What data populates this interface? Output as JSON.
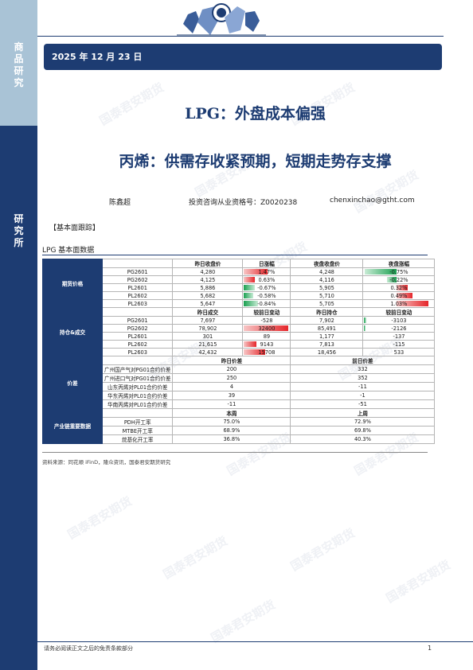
{
  "sidebar": {
    "top_label": "商\n品\n研\n究",
    "bottom_label": "研\n究\n所"
  },
  "date": "2025 年 12 月 23 日",
  "title_main": "LPG：外盘成本偏强",
  "title_sub": "丙烯：供需存收紧预期，短期走势存支撑",
  "author": {
    "name": "陈鑫超",
    "qualification_label": "投资咨询从业资格号：",
    "qualification_no": "Z0020238",
    "email": "chenxinchao@gtht.com"
  },
  "section_tag": "【基本面跟踪】",
  "table_title": "LPG 基本面数据",
  "watermark_text": "国泰君安期货",
  "table": {
    "futures": {
      "category": "期货价格",
      "headers": [
        "昨日收盘价",
        "日涨幅",
        "夜盘收盘价",
        "夜盘涨幅"
      ],
      "rows": [
        {
          "label": "PG2601",
          "close": "4,280",
          "chg": "1.47%",
          "night": "4,248",
          "night_chg": "-0.75%"
        },
        {
          "label": "PG2602",
          "close": "4,125",
          "chg": "0.63%",
          "night": "4,116",
          "night_chg": "-0.22%"
        },
        {
          "label": "PL2601",
          "close": "5,886",
          "chg": "-0.67%",
          "night": "5,905",
          "night_chg": "0.32%"
        },
        {
          "label": "PL2602",
          "close": "5,682",
          "chg": "-0.58%",
          "night": "5,710",
          "night_chg": "0.49%"
        },
        {
          "label": "PL2603",
          "close": "5,647",
          "chg": "-0.84%",
          "night": "5,705",
          "night_chg": "1.03%"
        }
      ]
    },
    "positions": {
      "category": "持仓&成交",
      "headers": [
        "昨日成交",
        "较前日变动",
        "昨日持仓",
        "较前日变动"
      ],
      "rows": [
        {
          "label": "PG2601",
          "vol": "7,697",
          "vol_chg": "-528",
          "oi": "7,902",
          "oi_chg": "-3103"
        },
        {
          "label": "PG2602",
          "vol": "78,902",
          "vol_chg": "32400",
          "oi": "85,491",
          "oi_chg": "-2126"
        },
        {
          "label": "PL2601",
          "vol": "301",
          "vol_chg": "89",
          "oi": "1,177",
          "oi_chg": "-137"
        },
        {
          "label": "PL2602",
          "vol": "21,615",
          "vol_chg": "9143",
          "oi": "7,813",
          "oi_chg": "-115"
        },
        {
          "label": "PL2603",
          "vol": "42,432",
          "vol_chg": "15708",
          "oi": "18,456",
          "oi_chg": "533"
        }
      ]
    },
    "spreads": {
      "category": "价差",
      "headers": [
        "昨日价差",
        "前日价差"
      ],
      "rows": [
        {
          "label": "广州国产气对PG01合约价差",
          "yesterday": "200",
          "prev": "332"
        },
        {
          "label": "广州进口气对PG01合约价差",
          "yesterday": "250",
          "prev": "352"
        },
        {
          "label": "山东丙烯对PL01合约价差",
          "yesterday": "4",
          "prev": "-11"
        },
        {
          "label": "华东丙烯对PL01合约价差",
          "yesterday": "39",
          "prev": "-1"
        },
        {
          "label": "华南丙烯对PL01合约价差",
          "yesterday": "-11",
          "prev": "-51"
        }
      ]
    },
    "industry": {
      "category": "产业链重要数据",
      "headers": [
        "本周",
        "上周"
      ],
      "rows": [
        {
          "label": "PDH开工率",
          "this_week": "75.0%",
          "last_week": "72.9%"
        },
        {
          "label": "MTBE开工率",
          "this_week": "68.9%",
          "last_week": "69.8%"
        },
        {
          "label": "烷基化开工率",
          "this_week": "36.8%",
          "last_week": "40.3%"
        }
      ]
    }
  },
  "source": "资料来源：同花顺 iFinD，隆众资讯，国泰君安期货研究",
  "footer_text": "请务必阅读正文之后的免责条款部分",
  "page_number": "1"
}
